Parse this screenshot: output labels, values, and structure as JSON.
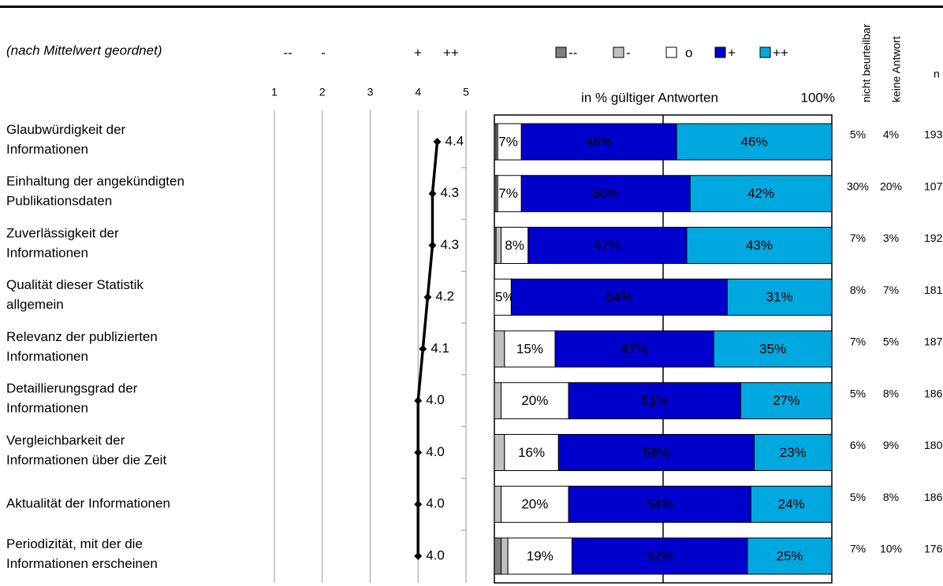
{
  "chart_data": [
    {
      "type": "line",
      "subtitle": "(nach Mittelwert geordnet)",
      "scale_labels": [
        "--",
        "-",
        "+",
        "++"
      ],
      "categories": [
        [
          "Glaubwürdigkeit der",
          "Informationen"
        ],
        [
          "Einhaltung der angekündigten",
          "Publikationsdaten"
        ],
        [
          "Zuverlässigkeit der",
          "Informationen"
        ],
        [
          "Qualität dieser Statistik",
          "allgemein"
        ],
        [
          "Relevanz der publizierten",
          "Informationen"
        ],
        [
          "Detaillierungsgrad der",
          "Informationen"
        ],
        [
          "Vergleichbarkeit der",
          "Informationen über die Zeit"
        ],
        [
          "Aktualität der Informationen"
        ],
        [
          "Periodizität, mit der die",
          "Informationen erscheinen"
        ]
      ],
      "values": [
        4.4,
        4.3,
        4.3,
        4.2,
        4.1,
        4.0,
        4.0,
        4.0,
        4.0
      ],
      "value_labels": [
        "4.4",
        "4.3",
        "4.3",
        "4.2",
        "4.1",
        "4.0",
        "4.0",
        "4.0",
        "4.0"
      ],
      "color": "#000000",
      "xlim": [
        1,
        5
      ],
      "xticks": [
        1,
        2,
        3,
        4,
        5
      ],
      "grid": true
    },
    {
      "type": "stacked_bar",
      "axis_label": "in % gültiger Antworten",
      "xlim": [
        0,
        100
      ],
      "xticks": [
        {
          "value": 100,
          "label": "100%"
        }
      ],
      "gridlines": [
        50
      ],
      "series": [
        {
          "name": "--",
          "color": "#808080",
          "values": [
            0.5,
            0.5,
            0.5,
            0,
            0,
            0,
            0,
            0,
            2
          ]
        },
        {
          "name": "-",
          "color": "#c0c0c0",
          "values": [
            0.5,
            0.5,
            1.5,
            0,
            3,
            2,
            3,
            2,
            2
          ]
        },
        {
          "name": "o",
          "color": "#ffffff",
          "values": [
            7,
            7,
            8,
            5,
            15,
            20,
            16,
            20,
            19
          ],
          "value_labels": [
            "7%",
            "7%",
            "8%",
            "5%",
            "15%",
            "20%",
            "16%",
            "20%",
            "19%"
          ]
        },
        {
          "name": "+",
          "color": "#0000cc",
          "values": [
            46,
            50,
            47,
            64,
            47,
            51,
            58,
            54,
            52
          ],
          "value_labels": [
            "46%",
            "50%",
            "47%",
            "64%",
            "47%",
            "51%",
            "58%",
            "54%",
            "52%"
          ]
        },
        {
          "name": "++",
          "color": "#00a8e0",
          "values": [
            46,
            42,
            43,
            31,
            35,
            27,
            23,
            24,
            25
          ],
          "value_labels": [
            "46%",
            "42%",
            "43%",
            "31%",
            "35%",
            "27%",
            "23%",
            "24%",
            "25%"
          ]
        }
      ]
    }
  ],
  "table": {
    "columns": [
      "nicht beurteilbar",
      "keine Antwort",
      "n"
    ],
    "rows": [
      [
        "5%",
        "4%",
        "193"
      ],
      [
        "30%",
        "20%",
        "107"
      ],
      [
        "7%",
        "3%",
        "192"
      ],
      [
        "8%",
        "7%",
        "181"
      ],
      [
        "7%",
        "5%",
        "187"
      ],
      [
        "5%",
        "8%",
        "186"
      ],
      [
        "6%",
        "9%",
        "180"
      ],
      [
        "5%",
        "8%",
        "186"
      ],
      [
        "7%",
        "10%",
        "176"
      ]
    ]
  }
}
